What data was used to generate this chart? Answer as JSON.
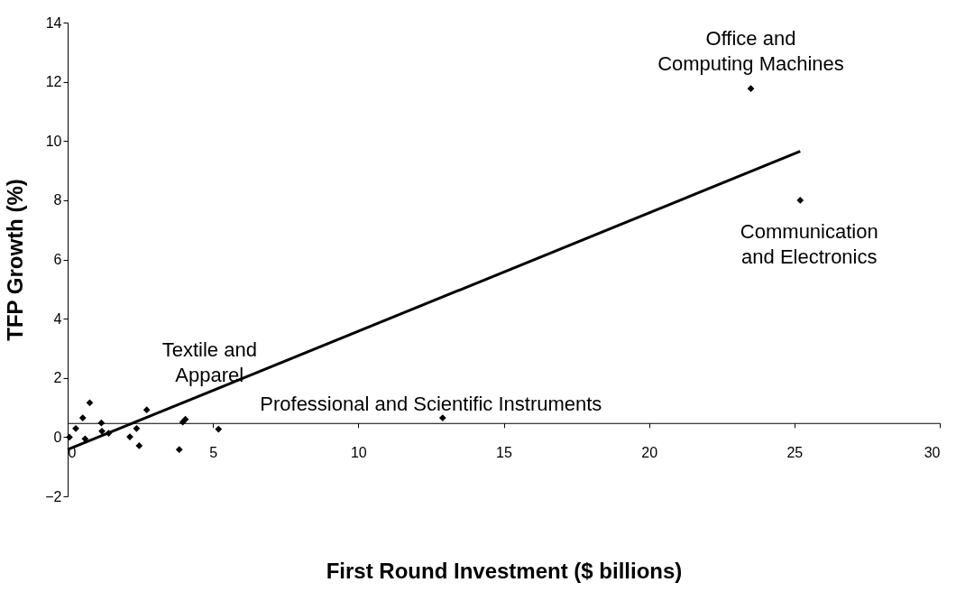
{
  "chart_data": {
    "type": "scatter",
    "xlabel": "First Round Investment ($ billions)",
    "ylabel": "TFP Growth (%)",
    "xlim": [
      0,
      30
    ],
    "xticks": [
      0,
      5,
      10,
      15,
      20,
      25,
      30
    ],
    "ylim": [
      -2,
      14
    ],
    "yticks": [
      -2,
      0,
      2,
      4,
      6,
      8,
      10,
      12,
      14
    ],
    "grid": false,
    "line_style": "solid",
    "series": [
      {
        "marker": "diamond",
        "color": "#000000",
        "x": [
          0.06,
          0.28,
          0.52,
          0.6,
          0.76,
          1.16,
          1.18,
          1.41,
          2.14,
          2.37,
          2.46,
          2.72,
          3.84,
          3.96,
          4.05,
          5.19,
          12.9,
          23.5,
          25.2
        ],
        "values": [
          0.0,
          0.29,
          0.65,
          -0.06,
          1.16,
          0.48,
          0.2,
          0.13,
          0.01,
          0.29,
          -0.29,
          0.92,
          -0.42,
          0.51,
          0.6,
          0.27,
          0.65,
          11.77,
          8.0
        ]
      },
      {
        "type": "line",
        "marker": "none",
        "color": "#000000",
        "x": [
          0,
          25.2
        ],
        "values": [
          -0.42,
          9.65
        ]
      }
    ],
    "annotations": [
      {
        "text": "Office and\nComputing Machines",
        "x": 23.5,
        "y": 11.77
      },
      {
        "text": "Communication\nand Electronics",
        "x": 25.2,
        "y": 8.0
      },
      {
        "text": "Textile and\nApparel",
        "x": 5.19,
        "y": 0.27
      },
      {
        "text": "Professional and Scientific Instruments",
        "x": 12.9,
        "y": 0.65
      }
    ]
  }
}
